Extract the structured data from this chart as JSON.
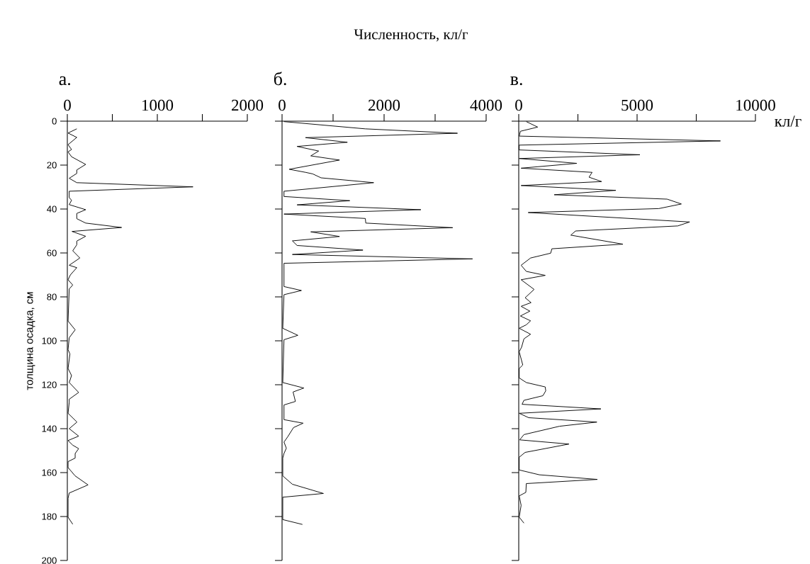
{
  "chart_data": [
    {
      "type": "line",
      "subtitle": "а.",
      "ylabel": "толщина осадка, см",
      "xlim": [
        0,
        2000
      ],
      "xticks": [
        0,
        {
          "value": 500,
          "label": null
        },
        1000,
        {
          "value": 1500,
          "label": null
        },
        2000
      ],
      "ylim": [
        200,
        0
      ],
      "yticks": [
        0,
        20,
        40,
        60,
        80,
        100,
        120,
        140,
        160,
        180,
        200
      ],
      "series": [
        {
          "color": "#000000",
          "x": [
            105,
            8,
            105,
            8,
            47,
            8,
            47,
            204,
            105,
            105,
            21,
            105,
            1396,
            21,
            21,
            47,
            21,
            204,
            105,
            105,
            204,
            603,
            52,
            204,
            105,
            105,
            60,
            139,
            21,
            105,
            34,
            8,
            60,
            21,
            8,
            87,
            21,
            8,
            29,
            8,
            47,
            21,
            126,
            21,
            21,
            8,
            107,
            21,
            126,
            8,
            60,
            126,
            87,
            87,
            8,
            8,
            87,
            230,
            21,
            8,
            8,
            60
          ],
          "values": [
            3.5,
            5.4,
            7.4,
            10.7,
            12.9,
            14,
            16.2,
            19.7,
            22.2,
            23.8,
            26,
            28,
            29.9,
            31.9,
            34.8,
            36,
            38,
            40.3,
            42,
            44.4,
            46.4,
            48.4,
            50.2,
            52.4,
            54.6,
            56.3,
            59,
            62.3,
            65.6,
            66.7,
            70,
            72.2,
            74.6,
            76.4,
            91,
            95,
            98.6,
            104,
            106,
            112.6,
            115.8,
            119,
            123.5,
            126.6,
            128,
            133,
            137,
            140,
            143.4,
            145.4,
            147.5,
            149.1,
            151.3,
            153.4,
            155,
            157.7,
            161.5,
            165.6,
            169.3,
            171.7,
            180.3,
            183.5
          ]
        }
      ]
    },
    {
      "type": "line",
      "title": "Численность, кл/г",
      "subtitle": "б.",
      "tick_labels": "x",
      "xlim": [
        0,
        4000
      ],
      "xticks": [
        0,
        {
          "value": 1000,
          "label": null
        },
        2000,
        {
          "value": 3000,
          "label": null
        },
        4000
      ],
      "ylim": [
        200,
        0
      ],
      "yticks": [
        0,
        20,
        40,
        60,
        80,
        100,
        120,
        140,
        160,
        180,
        200
      ],
      "series": [
        {
          "color": "#000000",
          "x": [
            38,
            1632,
            3438,
            460,
            1280,
            295,
            718,
            563,
            1126,
            141,
            460,
            600,
            765,
            1796,
            38,
            38,
            1327,
            295,
            2720,
            38,
            1632,
            1641,
            3344,
            563,
            1126,
            202,
            295,
            1585,
            202,
            3733,
            38,
            38,
            380,
            38,
            14,
            310,
            38,
            14,
            427,
            216,
            262,
            38,
            38,
            413,
            225,
            108,
            38,
            84,
            38,
            14,
            14,
            202,
            811,
            14,
            14,
            399
          ],
          "values": [
            0.2,
            3.5,
            5.5,
            7.5,
            9.6,
            11.5,
            13.6,
            15.8,
            17.7,
            21.9,
            23.3,
            24,
            25.8,
            28,
            31.9,
            34.3,
            36.2,
            38.1,
            40.3,
            42.3,
            44.3,
            46.4,
            48.5,
            50.4,
            52.5,
            54.5,
            56.6,
            58.7,
            60.7,
            62.7,
            64.7,
            75.3,
            77.1,
            79,
            94.3,
            97.5,
            99.5,
            119,
            121.5,
            123.3,
            127.6,
            129.2,
            135.9,
            137.5,
            139.5,
            143.8,
            146.1,
            148.9,
            151.3,
            153.4,
            161.5,
            165.3,
            169.5,
            171.2,
            181.4,
            183.6
          ]
        }
      ]
    },
    {
      "type": "line",
      "subtitle": "в.",
      "xlabel": "кл/г",
      "tick_labels": "x",
      "xlim": [
        0,
        10000
      ],
      "xticks": [
        0,
        {
          "value": 2500,
          "label": null
        },
        5000,
        {
          "value": 7500,
          "label": null
        },
        10000
      ],
      "ylim": [
        200,
        0
      ],
      "yticks": [
        0,
        20,
        40,
        60,
        80,
        100,
        120,
        140,
        160,
        180,
        200
      ],
      "series": [
        {
          "color": "#000000",
          "x": [
            320,
            800,
            70,
            20,
            8520,
            20,
            20,
            5120,
            20,
            2450,
            100,
            3100,
            2970,
            3500,
            100,
            4100,
            1500,
            6270,
            6870,
            5920,
            400,
            7220,
            6720,
            2400,
            2200,
            4400,
            1400,
            1350,
            500,
            100,
            320,
            1120,
            100,
            650,
            270,
            520,
            100,
            470,
            70,
            500,
            320,
            20,
            500,
            220,
            120,
            20,
            170,
            20,
            20,
            320,
            1120,
            1140,
            1020,
            220,
            140,
            3470,
            20,
            420,
            3300,
            1720,
            220,
            40,
            2120,
            270,
            20,
            20,
            870,
            3320,
            320,
            300,
            20,
            100,
            20,
            220
          ],
          "values": [
            0.2,
            2.7,
            4.6,
            6.8,
            9,
            10.9,
            13.1,
            15.3,
            17,
            19.2,
            21.4,
            23.3,
            25.5,
            27.5,
            29.3,
            31.5,
            33.5,
            35.5,
            37.7,
            39.8,
            41.6,
            45.9,
            47.7,
            50,
            51.9,
            56,
            58.1,
            60.1,
            62.3,
            65.6,
            68.4,
            70.2,
            72.2,
            76.6,
            80.4,
            82.6,
            84.3,
            86.5,
            88.7,
            90.9,
            92.7,
            94.3,
            97,
            99.1,
            102.9,
            105,
            111,
            112.6,
            116.9,
            119,
            121,
            122.8,
            125,
            127.1,
            128.9,
            131,
            133,
            135,
            137,
            138.9,
            142.7,
            145.1,
            147,
            150.8,
            153,
            158.8,
            161,
            163.1,
            165,
            169,
            170.6,
            174.9,
            180.3,
            183
          ]
        }
      ]
    }
  ]
}
